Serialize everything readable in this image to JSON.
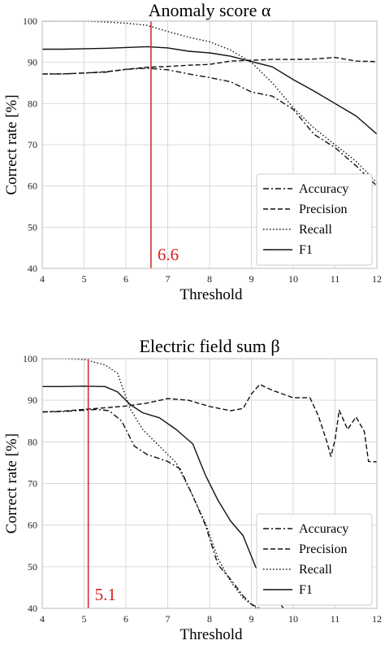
{
  "chart_data": [
    {
      "type": "line",
      "title": "Anomaly score α",
      "xlabel": "Threshold",
      "ylabel": "Correct rate [%]",
      "xlim": [
        4,
        12
      ],
      "ylim": [
        40,
        100
      ],
      "xticks": [
        4,
        5,
        6,
        7,
        8,
        9,
        10,
        11,
        12
      ],
      "yticks": [
        40,
        50,
        60,
        70,
        80,
        90,
        100
      ],
      "grid": true,
      "legend_position": "bottom-right",
      "threshold_line": {
        "x": 6.6,
        "label": "6.6",
        "color": "#d62020"
      },
      "series": [
        {
          "name": "Accuracy",
          "style": "dashdot",
          "x": [
            4,
            4.5,
            5,
            5.5,
            6,
            6.5,
            7,
            7.5,
            8,
            8.5,
            9,
            9.5,
            10,
            10.5,
            11,
            11.5,
            12
          ],
          "y": [
            87.2,
            87.2,
            87.4,
            87.6,
            88.3,
            88.6,
            88.2,
            87.2,
            86.3,
            85.3,
            82.8,
            81.8,
            78.6,
            72.5,
            69.3,
            64.9,
            60
          ]
        },
        {
          "name": "Precision",
          "style": "dashed",
          "x": [
            4,
            4.5,
            5,
            5.5,
            6,
            6.5,
            7,
            7.5,
            8,
            8.5,
            9,
            9.5,
            10,
            10.5,
            11,
            11.5,
            12
          ],
          "y": [
            87.2,
            87.2,
            87.4,
            87.7,
            88.3,
            88.8,
            89,
            89.3,
            89.5,
            90.3,
            90.5,
            90.7,
            90.7,
            90.8,
            91.2,
            90.3,
            90.2
          ]
        },
        {
          "name": "Recall",
          "style": "dotted",
          "x": [
            4,
            4.5,
            5,
            5.5,
            6,
            6.5,
            7,
            7.5,
            8,
            8.5,
            9,
            9.5,
            10,
            10.5,
            11,
            11.5,
            12
          ],
          "y": [
            100,
            100,
            100,
            99.8,
            99.5,
            99,
            97.5,
            96.1,
            95,
            93,
            90,
            85,
            79,
            74,
            70,
            66,
            60.8
          ]
        },
        {
          "name": "F1",
          "style": "solid",
          "x": [
            4,
            4.5,
            5,
            5.5,
            6,
            6.5,
            7,
            7.5,
            8,
            8.5,
            9,
            9.5,
            10,
            10.5,
            11,
            11.5,
            12
          ],
          "y": [
            93.2,
            93.2,
            93.3,
            93.4,
            93.6,
            93.8,
            93.5,
            92.7,
            92.3,
            91.5,
            90.2,
            88.9,
            85.8,
            83,
            80,
            77,
            72.6
          ]
        }
      ]
    },
    {
      "type": "line",
      "title": "Electric field sum β",
      "xlabel": "Threshold",
      "ylabel": "Correct rate [%]",
      "xlim": [
        4,
        12
      ],
      "ylim": [
        40,
        100
      ],
      "xticks": [
        4,
        5,
        6,
        7,
        8,
        9,
        10,
        11,
        12
      ],
      "yticks": [
        40,
        50,
        60,
        70,
        80,
        90,
        100
      ],
      "grid": true,
      "legend_position": "bottom-right",
      "threshold_line": {
        "x": 5.1,
        "label": "5.1",
        "color": "#d62020"
      },
      "series": [
        {
          "name": "Accuracy",
          "style": "dashdot",
          "x": [
            4,
            4.5,
            5,
            5.3,
            5.6,
            5.9,
            6.2,
            6.5,
            7,
            7.3,
            7.6,
            7.9,
            8.2,
            8.5,
            8.8,
            9,
            9.3
          ],
          "y": [
            87.2,
            87.3,
            87.6,
            87.8,
            87.5,
            85,
            79,
            77,
            75.3,
            73.5,
            67,
            60,
            50.5,
            47,
            43,
            41,
            39.5
          ]
        },
        {
          "name": "Precision",
          "style": "dashed",
          "x": [
            4,
            4.5,
            5,
            5.5,
            6,
            6.5,
            7,
            7.5,
            8,
            8.5,
            8.8,
            9,
            9.2,
            9.5,
            10,
            10.4,
            10.6,
            10.8,
            10.9,
            11,
            11.1,
            11.3,
            11.5,
            11.7,
            11.8,
            12
          ],
          "y": [
            87.2,
            87.4,
            87.8,
            88.2,
            88.6,
            89.3,
            90.4,
            90,
            88.5,
            87.5,
            88,
            91.5,
            93.8,
            92.4,
            90.6,
            90.6,
            86.3,
            80.2,
            76.5,
            80.5,
            87.6,
            83,
            86,
            82.5,
            75.3,
            75.2
          ]
        },
        {
          "name": "Recall",
          "style": "dotted",
          "x": [
            4,
            4.5,
            5,
            5.5,
            5.8,
            6.1,
            6.4,
            6.8,
            7.2,
            7.6,
            7.9,
            8.2,
            8.5,
            8.8,
            9.1,
            9.3
          ],
          "y": [
            100,
            100,
            99.8,
            98.5,
            96.5,
            88,
            83,
            79,
            75,
            67,
            60.5,
            52,
            46.5,
            42.5,
            40.2,
            39.5
          ]
        },
        {
          "name": "F1",
          "style": "solid",
          "x": [
            4,
            4.5,
            5,
            5.5,
            5.8,
            6.1,
            6.4,
            6.8,
            7.2,
            7.6,
            7.9,
            8.2,
            8.5,
            8.8,
            9.1,
            9.5,
            9.8
          ],
          "y": [
            93.3,
            93.3,
            93.4,
            93.3,
            92,
            89,
            87,
            85.8,
            83,
            79.5,
            72,
            66,
            61,
            57.5,
            50,
            44,
            39.5
          ]
        }
      ]
    }
  ]
}
